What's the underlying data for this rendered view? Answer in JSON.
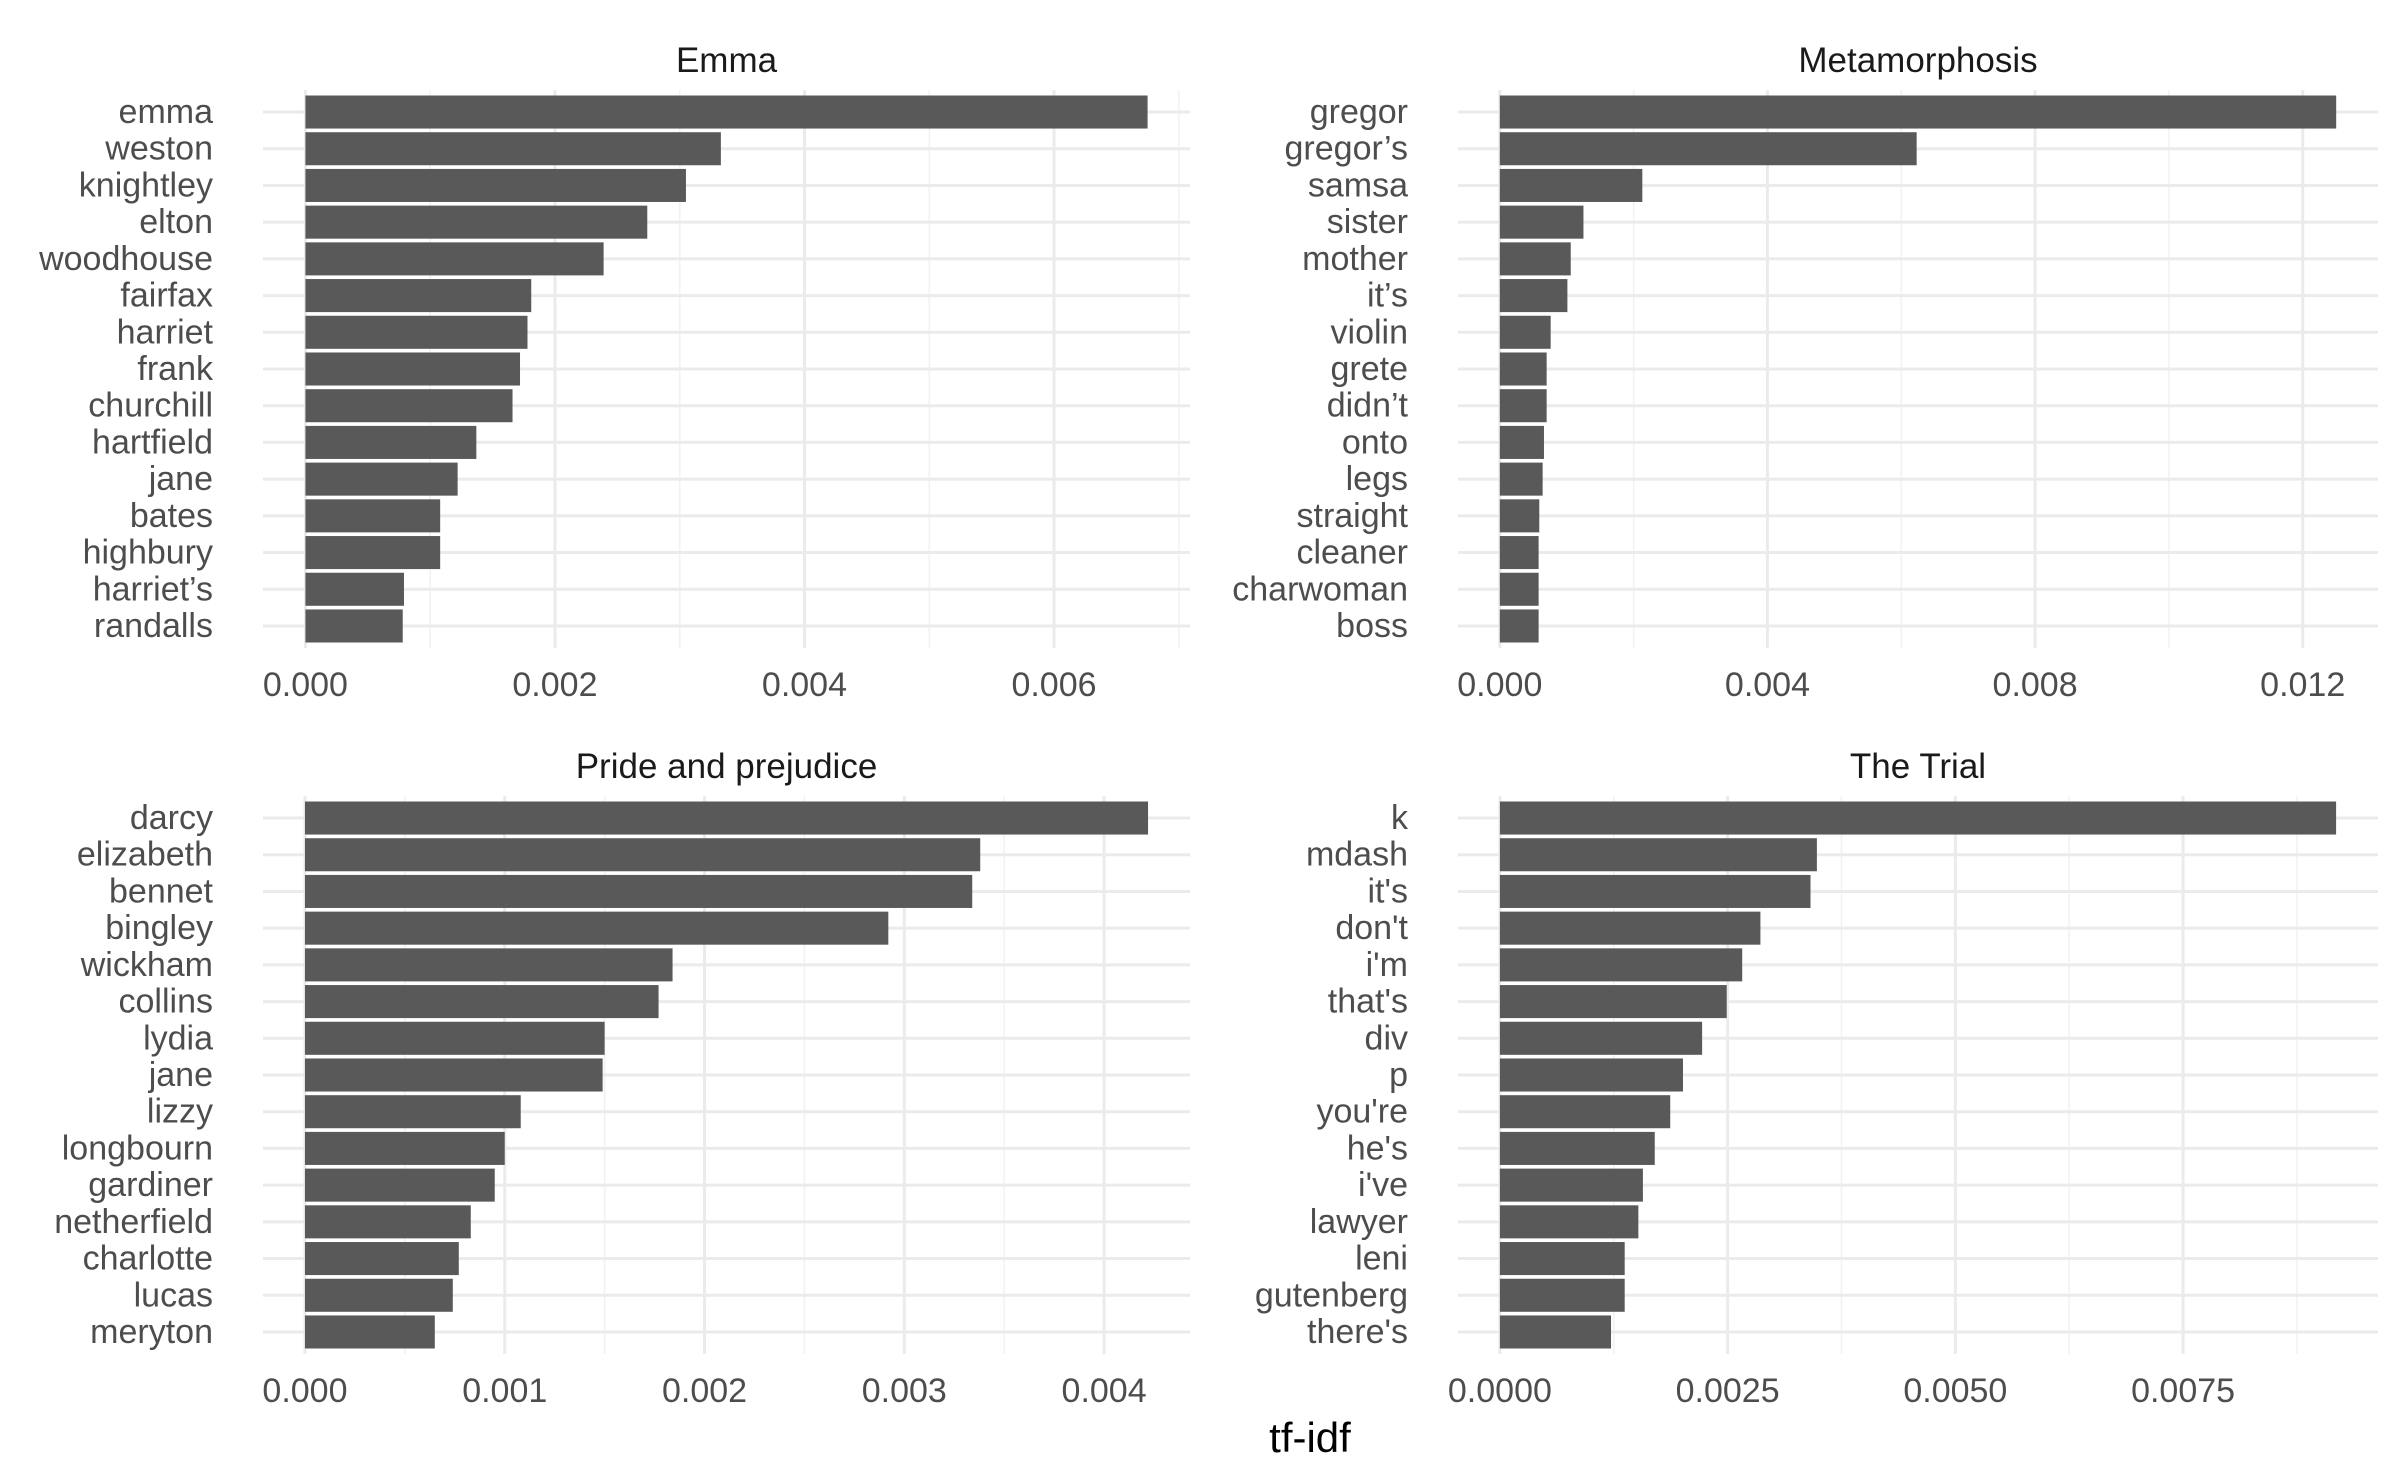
{
  "chart_data": {
    "type": "bar",
    "orientation": "horizontal",
    "faceted": true,
    "xlabel": "tf-idf",
    "bar_color": "#595959",
    "grid_color": "#ebebeb",
    "panels": [
      {
        "title": "Emma",
        "categories": [
          "emma",
          "weston",
          "knightley",
          "elton",
          "woodhouse",
          "fairfax",
          "harriet",
          "frank",
          "churchill",
          "hartfield",
          "jane",
          "bates",
          "highbury",
          "harriet’s",
          "randalls"
        ],
        "values": [
          0.00675,
          0.00333,
          0.00305,
          0.00274,
          0.00239,
          0.00181,
          0.00178,
          0.00172,
          0.00166,
          0.00137,
          0.00122,
          0.00108,
          0.00108,
          0.00079,
          0.00078
        ],
        "xlim": [
          -0.00034,
          0.00709
        ],
        "ticks": [
          0,
          0.002,
          0.004,
          0.006
        ],
        "tick_labels": [
          "0.000",
          "0.002",
          "0.004",
          "0.006"
        ]
      },
      {
        "title": "Metamorphosis",
        "categories": [
          "gregor",
          "gregor’s",
          "samsa",
          "sister",
          "mother",
          "it’s",
          "violin",
          "grete",
          "didn’t",
          "onto",
          "legs",
          "straight",
          "cleaner",
          "charwoman",
          "boss"
        ],
        "values": [
          0.0125,
          0.00623,
          0.00213,
          0.00125,
          0.00106,
          0.00101,
          0.00076,
          0.0007,
          0.0007,
          0.00066,
          0.00064,
          0.00059,
          0.00058,
          0.00058,
          0.00058
        ],
        "xlim": [
          -0.000625,
          0.013125
        ],
        "ticks": [
          0,
          0.004,
          0.008,
          0.012
        ],
        "tick_labels": [
          "0.000",
          "0.004",
          "0.008",
          "0.012"
        ]
      },
      {
        "title": "Pride and prejudice",
        "categories": [
          "darcy",
          "elizabeth",
          "bennet",
          "bingley",
          "wickham",
          "collins",
          "lydia",
          "jane",
          "lizzy",
          "longbourn",
          "gardiner",
          "netherfield",
          "charlotte",
          "lucas",
          "meryton"
        ],
        "values": [
          0.00422,
          0.00338,
          0.00334,
          0.00292,
          0.00184,
          0.00177,
          0.0015,
          0.00149,
          0.00108,
          0.001,
          0.00095,
          0.00083,
          0.00077,
          0.00074,
          0.00065
        ],
        "xlim": [
          -0.00021,
          0.00443
        ],
        "ticks": [
          0,
          0.001,
          0.002,
          0.003,
          0.004
        ],
        "tick_labels": [
          "0.000",
          "0.001",
          "0.002",
          "0.003",
          "0.004"
        ]
      },
      {
        "title": "The Trial",
        "categories": [
          "k",
          "mdash",
          "it's",
          "don't",
          "i'm",
          "that's",
          "div",
          "p",
          "you're",
          "he's",
          "i've",
          "lawyer",
          "leni",
          "gutenberg",
          "there's"
        ],
        "values": [
          0.00918,
          0.00348,
          0.00341,
          0.00286,
          0.00266,
          0.00249,
          0.00222,
          0.00201,
          0.00187,
          0.0017,
          0.00157,
          0.00152,
          0.00137,
          0.00137,
          0.00122
        ],
        "xlim": [
          -0.00046,
          0.00964
        ],
        "ticks": [
          0,
          0.0025,
          0.005,
          0.0075
        ],
        "tick_labels": [
          "0.0000",
          "0.0025",
          "0.0050",
          "0.0075"
        ]
      }
    ]
  }
}
